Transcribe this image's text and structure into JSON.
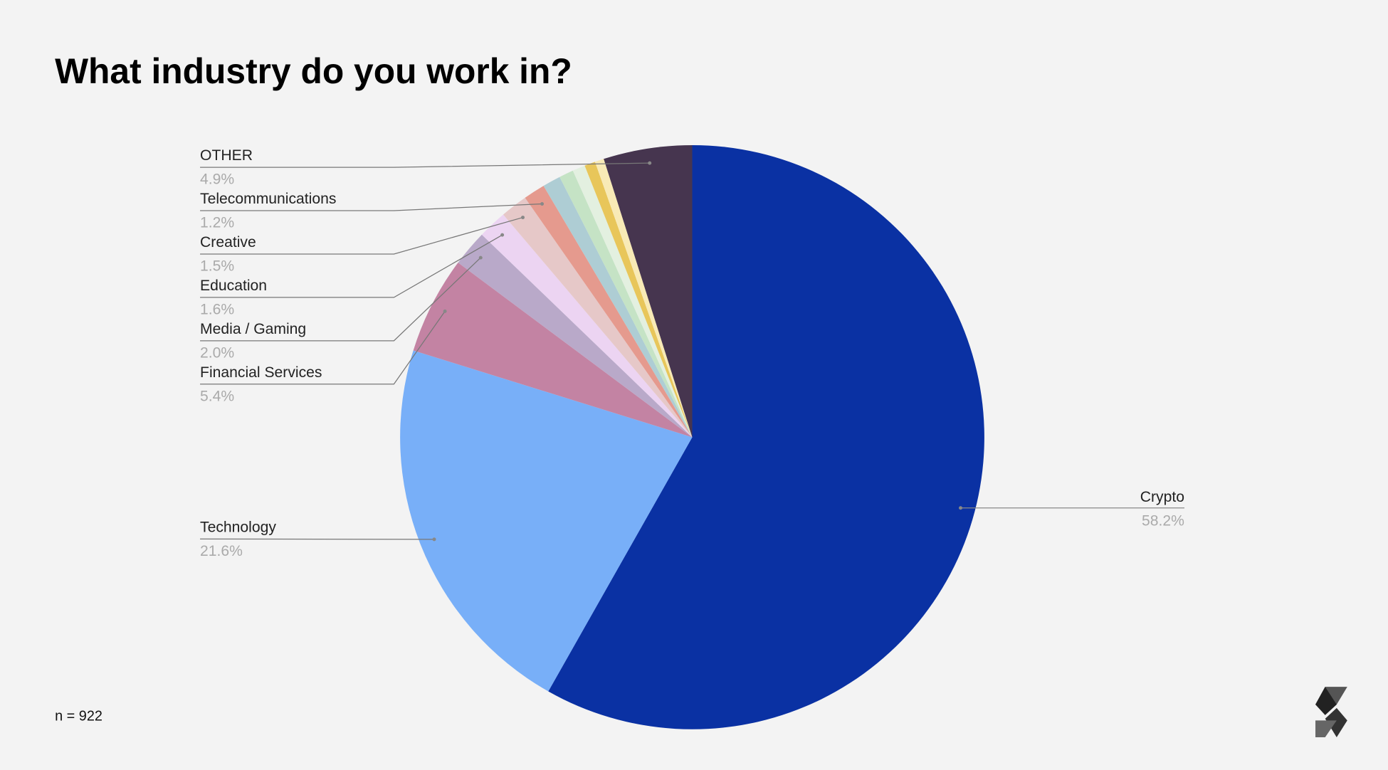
{
  "chart_data": {
    "type": "pie",
    "title": "What industry do you work in?",
    "note": "n = 922",
    "categories": [
      "Crypto",
      "Technology",
      "Financial Services",
      "Media / Gaming",
      "Education",
      "Creative",
      "Telecommunications",
      null,
      null,
      null,
      null,
      null,
      "OTHER"
    ],
    "values": [
      58.2,
      21.6,
      5.4,
      2.0,
      1.6,
      1.5,
      1.2,
      1.0,
      0.8,
      0.7,
      0.6,
      0.5,
      4.9
    ],
    "value_labels": [
      "58.2%",
      "21.6%",
      "5.4%",
      "2.0%",
      "1.6%",
      "1.5%",
      "1.2%",
      null,
      null,
      null,
      null,
      null,
      "4.9%"
    ],
    "colors": [
      "#0a31a3",
      "#78aff8",
      "#c383a3",
      "#b9a9c9",
      "#ecd4f2",
      "#e6c8c8",
      "#e59a8e",
      "#aecdd4",
      "#c5e3c5",
      "#e3f0e0",
      "#e8c65a",
      "#f8eab6",
      "#46354f"
    ]
  }
}
